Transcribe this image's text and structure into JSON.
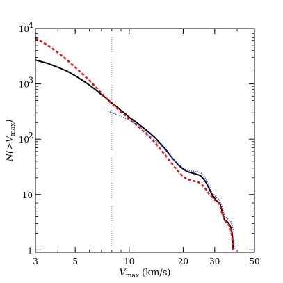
{
  "chart_data": {
    "type": "line",
    "x_scale": "log",
    "y_scale": "log",
    "xlim": [
      3,
      50
    ],
    "ylim": [
      0.9,
      10000
    ],
    "xlabel": {
      "main": "V",
      "sub": "max",
      "unit": " (km/s)"
    },
    "ylabel": {
      "pre": "N(>V",
      "sub": "max",
      "post": ")"
    },
    "x_ticks": [
      {
        "value": 3,
        "label": "3"
      },
      {
        "value": 5,
        "label": "5"
      },
      {
        "value": 10,
        "label": "10"
      },
      {
        "value": 20,
        "label": "20"
      },
      {
        "value": 30,
        "label": "30"
      },
      {
        "value": 50,
        "label": "50"
      }
    ],
    "y_ticks": [
      {
        "value": 1,
        "label": "1",
        "exp": ""
      },
      {
        "value": 10,
        "label": "10",
        "exp": ""
      },
      {
        "value": 100,
        "label": "10",
        "exp": "2"
      },
      {
        "value": 1000,
        "label": "10",
        "exp": "3"
      },
      {
        "value": 10000,
        "label": "10",
        "exp": "4"
      }
    ],
    "reference_line": {
      "x": 8,
      "style": "dotted",
      "color": "#888888"
    },
    "grid": false,
    "series": [
      {
        "style": "solid",
        "color": "#000000",
        "points": [
          [
            3.0,
            2700
          ],
          [
            3.5,
            2350
          ],
          [
            4.0,
            2000
          ],
          [
            4.5,
            1700
          ],
          [
            5.0,
            1400
          ],
          [
            5.5,
            1150
          ],
          [
            6.0,
            950
          ],
          [
            6.5,
            780
          ],
          [
            7.0,
            640
          ],
          [
            7.5,
            540
          ],
          [
            8.0,
            450
          ],
          [
            8.5,
            390
          ],
          [
            9.0,
            330
          ],
          [
            9.5,
            290
          ],
          [
            10.0,
            250
          ],
          [
            11.0,
            200
          ],
          [
            12.0,
            160
          ],
          [
            13.0,
            130
          ],
          [
            14.0,
            105
          ],
          [
            15.0,
            82
          ],
          [
            16.0,
            65
          ],
          [
            17.0,
            50
          ],
          [
            18.0,
            40
          ],
          [
            19.0,
            33
          ],
          [
            20.0,
            29
          ],
          [
            21.0,
            26
          ],
          [
            22.0,
            25
          ],
          [
            23.0,
            24
          ],
          [
            24.0,
            23
          ],
          [
            25.0,
            22
          ],
          [
            26.0,
            19
          ],
          [
            27.0,
            16
          ],
          [
            28.0,
            12.5
          ],
          [
            29.0,
            10
          ],
          [
            30.0,
            8.5
          ],
          [
            31.0,
            7.5
          ],
          [
            32.0,
            7
          ],
          [
            33.0,
            5
          ],
          [
            33.5,
            4
          ],
          [
            34.0,
            3.5
          ],
          [
            35.0,
            3.3
          ],
          [
            36.0,
            3
          ],
          [
            37.0,
            2.5
          ],
          [
            37.5,
            2
          ],
          [
            37.8,
            1.5
          ],
          [
            38.0,
            1
          ]
        ]
      },
      {
        "style": "dashed",
        "color": "#ee1111",
        "points": [
          [
            3.0,
            6700
          ],
          [
            3.5,
            5000
          ],
          [
            4.0,
            3700
          ],
          [
            4.5,
            2700
          ],
          [
            5.0,
            2000
          ],
          [
            5.5,
            1500
          ],
          [
            6.0,
            1150
          ],
          [
            6.5,
            880
          ],
          [
            7.0,
            680
          ],
          [
            7.5,
            540
          ],
          [
            8.0,
            440
          ],
          [
            8.5,
            370
          ],
          [
            9.0,
            310
          ],
          [
            9.5,
            270
          ],
          [
            10.0,
            230
          ],
          [
            11.0,
            180
          ],
          [
            12.0,
            140
          ],
          [
            13.0,
            110
          ],
          [
            14.0,
            85
          ],
          [
            15.0,
            65
          ],
          [
            16.0,
            50
          ],
          [
            17.0,
            39
          ],
          [
            18.0,
            31
          ],
          [
            19.0,
            25
          ],
          [
            20.0,
            21
          ],
          [
            21.0,
            19
          ],
          [
            22.0,
            18
          ],
          [
            23.0,
            17.5
          ],
          [
            24.0,
            17
          ],
          [
            25.0,
            16
          ],
          [
            26.0,
            14
          ],
          [
            27.0,
            12
          ],
          [
            28.0,
            10
          ],
          [
            29.0,
            9
          ],
          [
            30.0,
            8
          ],
          [
            31.0,
            7.5
          ],
          [
            32.0,
            6.5
          ],
          [
            33.0,
            4.5
          ],
          [
            34.0,
            3.5
          ],
          [
            35.0,
            3
          ],
          [
            36.0,
            2.8
          ],
          [
            37.0,
            2.2
          ],
          [
            37.5,
            1.6
          ],
          [
            38.0,
            1
          ]
        ]
      },
      {
        "style": "dotted",
        "color": "#3344dd",
        "points": [
          [
            7.2,
            330
          ],
          [
            7.6,
            320
          ],
          [
            8.0,
            300
          ],
          [
            8.5,
            280
          ],
          [
            9.0,
            260
          ],
          [
            9.5,
            240
          ],
          [
            10.0,
            220
          ],
          [
            11.0,
            185
          ],
          [
            12.0,
            150
          ],
          [
            13.0,
            115
          ],
          [
            14.0,
            95
          ],
          [
            15.0,
            78
          ],
          [
            16.0,
            62
          ],
          [
            17.0,
            50
          ],
          [
            18.0,
            40
          ],
          [
            19.0,
            34
          ],
          [
            20.0,
            30
          ],
          [
            21.0,
            28
          ],
          [
            22.0,
            27
          ],
          [
            23.0,
            26
          ],
          [
            24.0,
            26
          ],
          [
            25.0,
            25
          ],
          [
            26.0,
            22
          ],
          [
            27.0,
            18
          ],
          [
            28.0,
            14
          ],
          [
            29.0,
            11
          ],
          [
            30.0,
            9.5
          ],
          [
            31.0,
            8.5
          ],
          [
            32.0,
            8
          ],
          [
            33.0,
            6
          ],
          [
            33.5,
            5
          ],
          [
            34.0,
            4
          ],
          [
            35.0,
            3.8
          ],
          [
            36.0,
            3.5
          ],
          [
            37.0,
            3.2
          ],
          [
            37.5,
            2.8
          ],
          [
            38.0,
            2.3
          ],
          [
            38.3,
            1.5
          ],
          [
            38.5,
            1
          ]
        ]
      }
    ]
  }
}
